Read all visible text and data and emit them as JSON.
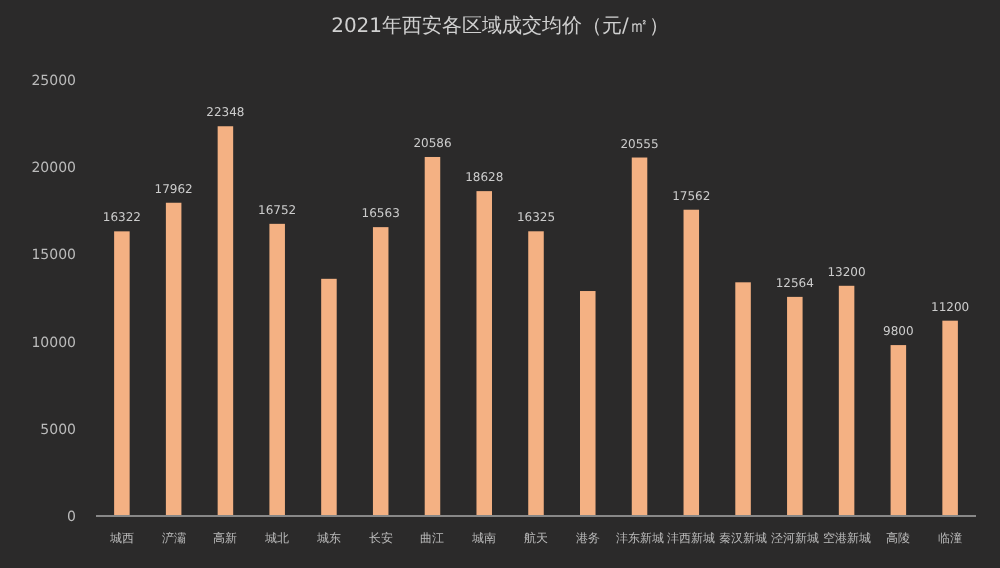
{
  "chart_data": {
    "type": "bar",
    "title": "2021年西安各区域成交均价（元/㎡）",
    "categories": [
      "城西",
      "浐灞",
      "高新",
      "城北",
      "城东",
      "长安",
      "曲江",
      "城南",
      "航天",
      "港务",
      "沣东新城",
      "沣西新城",
      "秦汉新城",
      "泾河新城",
      "空港新城",
      "高陵",
      "临潼"
    ],
    "values": [
      16322,
      17962,
      22348,
      16752,
      13600,
      16563,
      20586,
      18628,
      16325,
      12900,
      20555,
      17562,
      13400,
      12564,
      13200,
      9800,
      11200
    ],
    "value_labels": [
      "16322",
      "17962",
      "22348",
      "16752",
      null,
      "16563",
      "20586",
      "18628",
      "16325",
      null,
      "20555",
      "17562",
      null,
      "12564",
      "13200",
      "9800",
      "11200"
    ],
    "color": "#f4b183",
    "ylim": [
      0,
      25000
    ],
    "yticks": [
      0,
      5000,
      10000,
      15000,
      20000,
      25000
    ],
    "grid": false
  }
}
